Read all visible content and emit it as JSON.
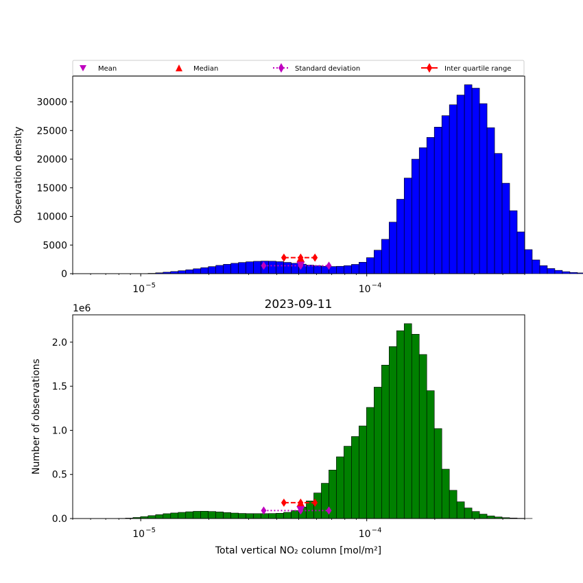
{
  "colors": {
    "top_bars": "#0000ff",
    "bottom_bars": "#008000",
    "bar_edge": "#000000",
    "mean": "#bf00bf",
    "median": "#ff0000",
    "std": "#bf00bf",
    "iqr": "#ff0000"
  },
  "legend": {
    "placement": "top",
    "items": [
      {
        "label": "Mean",
        "marker": "triangle-down-icon"
      },
      {
        "label": "Median",
        "marker": "triangle-up-icon"
      },
      {
        "label": "Standard deviation",
        "marker": "diamond-dotted-line-icon"
      },
      {
        "label": "Inter quartile range",
        "marker": "diamond-solid-line-icon"
      }
    ]
  },
  "chart_data": [
    {
      "type": "bar",
      "title": "",
      "xlabel": "",
      "ylabel": "Observation density",
      "xscale": "log",
      "xlim": [
        5e-06,
        0.0005
      ],
      "ylim": [
        0,
        34500
      ],
      "x_ticks": [
        {
          "value": 1e-05,
          "base": "10",
          "exp": "−5"
        },
        {
          "value": 0.0001,
          "base": "10",
          "exp": "−4"
        }
      ],
      "y_ticks": [
        "0",
        "5000",
        "10000",
        "15000",
        "20000",
        "25000",
        "30000"
      ],
      "y_tick_values": [
        0,
        5000,
        10000,
        15000,
        20000,
        25000,
        30000
      ],
      "grid": false,
      "bin_edges_start": 5e-06,
      "bins_per_decade": 30,
      "bin_values": [
        0,
        0,
        0,
        0,
        0,
        0,
        0,
        0,
        0,
        20,
        60,
        150,
        260,
        380,
        520,
        680,
        860,
        1050,
        1240,
        1450,
        1640,
        1810,
        1960,
        2080,
        2160,
        2200,
        2180,
        2100,
        1970,
        1820,
        1660,
        1500,
        1380,
        1290,
        1250,
        1290,
        1400,
        1620,
        2000,
        2800,
        4100,
        6000,
        9000,
        13000,
        16700,
        20000,
        22000,
        23800,
        25600,
        27600,
        29500,
        31200,
        33000,
        32400,
        29700,
        25500,
        21000,
        15800,
        11000,
        7300,
        4200,
        2400,
        1400,
        900,
        580,
        350,
        210,
        130,
        70,
        35,
        18,
        8,
        3,
        0,
        0,
        0,
        0,
        0,
        0,
        0,
        0,
        0,
        0,
        0,
        0,
        0,
        0,
        0,
        0,
        0
      ],
      "markers": {
        "mean": {
          "x": 5.1e-05,
          "y": 1500
        },
        "median": {
          "x": 5.1e-05,
          "y": 2600
        },
        "std": {
          "x": [
            3.5e-05,
            5.1e-05,
            6.8e-05
          ],
          "y": 1400
        },
        "iqr": {
          "x": [
            4.3e-05,
            5.1e-05,
            5.9e-05
          ],
          "y": 2800
        }
      }
    },
    {
      "type": "bar",
      "title": "2023-09-11",
      "xlabel": "Total vertical NO₂ column [mol/m²]",
      "ylabel": "Number of observations",
      "offset_text": "1e6",
      "xscale": "log",
      "xlim": [
        5e-06,
        0.0005
      ],
      "ylim": [
        0,
        2.31
      ],
      "x_ticks": [
        {
          "value": 1e-05,
          "base": "10",
          "exp": "−5"
        },
        {
          "value": 0.0001,
          "base": "10",
          "exp": "−4"
        }
      ],
      "y_ticks": [
        "0.0",
        "0.5",
        "1.0",
        "1.5",
        "2.0"
      ],
      "y_tick_values": [
        0,
        0.5,
        1.0,
        1.5,
        2.0
      ],
      "grid": false,
      "bin_edges_start": 5e-06,
      "bins_per_decade": 30,
      "bin_values": [
        0,
        0,
        0,
        0,
        0,
        0,
        0,
        0,
        0,
        0.002,
        0.005,
        0.012,
        0.022,
        0.033,
        0.044,
        0.055,
        0.063,
        0.07,
        0.077,
        0.082,
        0.083,
        0.08,
        0.075,
        0.068,
        0.062,
        0.058,
        0.056,
        0.056,
        0.056,
        0.057,
        0.06,
        0.07,
        0.09,
        0.13,
        0.2,
        0.29,
        0.4,
        0.55,
        0.7,
        0.82,
        0.93,
        1.05,
        1.26,
        1.49,
        1.74,
        1.95,
        2.13,
        2.21,
        2.09,
        1.86,
        1.45,
        1.02,
        0.56,
        0.32,
        0.19,
        0.12,
        0.08,
        0.05,
        0.03,
        0.018,
        0.01,
        0.006,
        0.003,
        0.001,
        0,
        0,
        0,
        0,
        0,
        0,
        0,
        0,
        0,
        0,
        0,
        0,
        0,
        0,
        0,
        0,
        0,
        0,
        0,
        0,
        0,
        0,
        0,
        0,
        0,
        0
      ],
      "bin_shift": -3,
      "markers": {
        "mean": {
          "x": 5.1e-05,
          "y": 0.1
        },
        "median": {
          "x": 5.1e-05,
          "y": 0.17
        },
        "std": {
          "x": [
            3.5e-05,
            5.1e-05,
            6.8e-05
          ],
          "y": 0.09
        },
        "iqr": {
          "x": [
            4.3e-05,
            5.1e-05,
            5.9e-05
          ],
          "y": 0.18
        }
      }
    }
  ]
}
